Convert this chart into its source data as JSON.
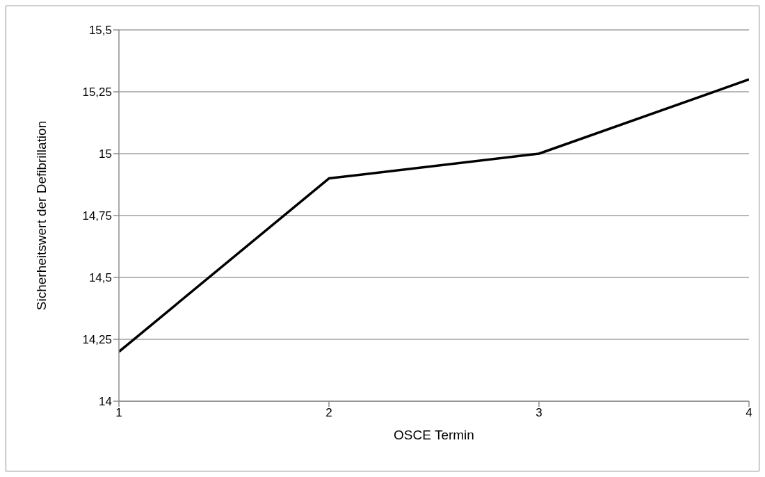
{
  "chart_data": {
    "type": "line",
    "xlabel": "OSCE Termin",
    "ylabel": "Sicherheitswert der Defibrillation",
    "x": [
      1,
      2,
      3,
      4
    ],
    "series": [
      {
        "color": "#000000",
        "values": [
          14.2,
          14.9,
          15.0,
          15.3
        ]
      }
    ],
    "xlim": [
      1,
      4
    ],
    "xticks": [
      1,
      2,
      3,
      4
    ],
    "ylim": [
      14,
      15.5
    ],
    "yticks": [
      {
        "value": 14,
        "label": "14"
      },
      {
        "value": 14.25,
        "label": "14,25"
      },
      {
        "value": 14.5,
        "label": "14,5"
      },
      {
        "value": 14.75,
        "label": "14,75"
      },
      {
        "value": 15,
        "label": "15"
      },
      {
        "value": 15.25,
        "label": "15,25"
      },
      {
        "value": 15.5,
        "label": "15,5"
      }
    ],
    "grid": "y",
    "legend": false,
    "marker": "none",
    "line_style": "solid"
  }
}
